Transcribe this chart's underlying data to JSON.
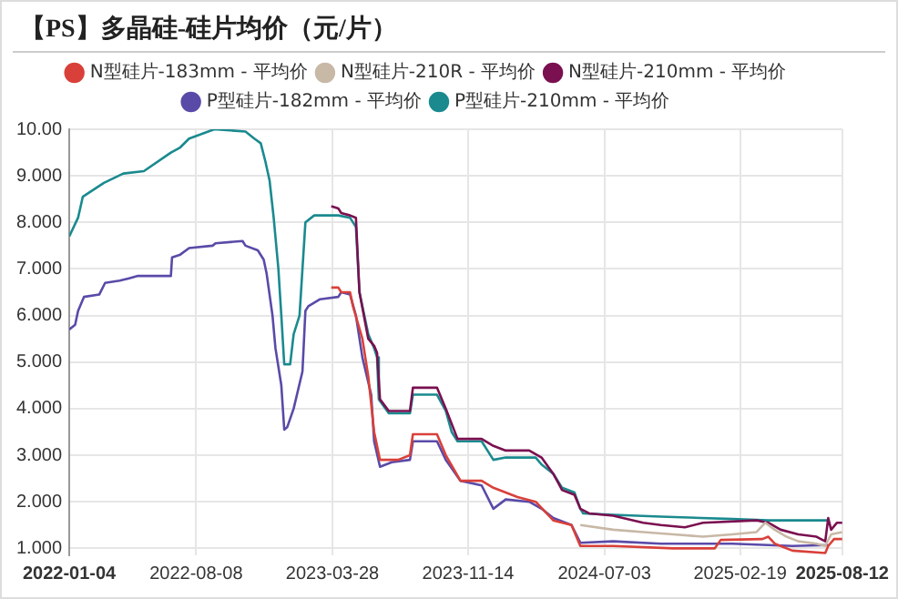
{
  "chart_data": {
    "type": "line",
    "title": "【PS】多晶硅-硅片均价（元/片）",
    "legend": "top",
    "grid": true,
    "marker": "none",
    "line_style": "solid",
    "xlim": [
      "2022-01-04",
      "2025-08-12"
    ],
    "xticks": [
      "2022-01-04",
      "2022-08-08",
      "2023-03-28",
      "2023-11-14",
      "2024-07-03",
      "2025-02-19",
      "2025-08-12"
    ],
    "ylim": [
      0.85,
      10
    ],
    "yticks": [
      {
        "value": 1,
        "label": "1.000"
      },
      {
        "value": 2,
        "label": "2.000"
      },
      {
        "value": 3,
        "label": "3.000"
      },
      {
        "value": 4,
        "label": "4.000"
      },
      {
        "value": 5,
        "label": "5.000"
      },
      {
        "value": 6,
        "label": "6.000"
      },
      {
        "value": 7,
        "label": "7.000"
      },
      {
        "value": 8,
        "label": "8.000"
      },
      {
        "value": 9,
        "label": "9.000"
      },
      {
        "value": 10,
        "label": "10.00"
      }
    ],
    "series": [
      {
        "name": "N型硅片-183mm - 平均价",
        "color": "#d9403a",
        "x": [
          "2023-03-26",
          "2023-04-07",
          "2023-04-12",
          "2023-04-27",
          "2023-05-02",
          "2023-05-18",
          "2023-05-28",
          "2023-06-07",
          "2023-06-17",
          "2023-07-18",
          "2023-08-07",
          "2023-08-12",
          "2023-09-22",
          "2023-10-07",
          "2023-11-01",
          "2023-12-07",
          "2023-12-27",
          "2024-02-06",
          "2024-03-08",
          "2024-04-07",
          "2024-05-08",
          "2024-05-23",
          "2024-07-18",
          "2024-10-28",
          "2025-01-07",
          "2025-01-17",
          "2025-03-29",
          "2025-04-08",
          "2025-04-19",
          "2025-05-19",
          "2025-07-14",
          "2025-07-19",
          "2025-07-29",
          "2025-08-12"
        ],
        "values": [
          6.6,
          6.6,
          6.5,
          6.5,
          6.2,
          5.5,
          4.7,
          3.5,
          2.9,
          2.9,
          3.0,
          3.45,
          3.45,
          3.0,
          2.45,
          2.45,
          2.3,
          2.1,
          2.0,
          1.6,
          1.5,
          1.05,
          1.05,
          1.0,
          1.0,
          1.18,
          1.2,
          1.25,
          1.1,
          0.95,
          0.9,
          1.05,
          1.2,
          1.2
        ]
      },
      {
        "name": "N型硅片-210R - 平均价",
        "color": "#c8b8a6",
        "x": [
          "2024-05-23",
          "2024-07-18",
          "2024-09-07",
          "2024-10-28",
          "2024-12-18",
          "2025-02-06",
          "2025-03-19",
          "2025-04-03",
          "2025-04-19",
          "2025-05-09",
          "2025-05-29",
          "2025-06-29",
          "2025-07-14",
          "2025-07-24",
          "2025-08-12"
        ],
        "values": [
          1.5,
          1.4,
          1.35,
          1.3,
          1.25,
          1.3,
          1.35,
          1.55,
          1.4,
          1.25,
          1.15,
          1.1,
          1.05,
          1.3,
          1.35
        ]
      },
      {
        "name": "N型硅片-210mm - 平均价",
        "color": "#7a1050",
        "x": [
          "2023-03-26",
          "2023-04-07",
          "2023-04-12",
          "2023-04-27",
          "2023-05-07",
          "2023-05-13",
          "2023-05-28",
          "2023-06-07",
          "2023-06-12",
          "2023-06-17",
          "2023-07-02",
          "2023-08-07",
          "2023-08-12",
          "2023-09-22",
          "2023-10-07",
          "2023-10-27",
          "2023-12-07",
          "2023-12-27",
          "2024-01-17",
          "2024-02-26",
          "2024-03-18",
          "2024-04-07",
          "2024-04-22",
          "2024-05-13",
          "2024-05-23",
          "2024-06-07",
          "2024-07-18",
          "2024-09-07",
          "2024-10-07",
          "2024-11-17",
          "2024-12-18",
          "2025-03-19",
          "2025-04-08",
          "2025-04-29",
          "2025-05-29",
          "2025-06-29",
          "2025-07-14",
          "2025-07-19",
          "2025-07-24",
          "2025-08-03",
          "2025-08-12"
        ],
        "values": [
          8.35,
          8.3,
          8.2,
          8.15,
          8.1,
          6.5,
          5.5,
          5.35,
          5.2,
          4.2,
          3.95,
          3.95,
          4.45,
          4.45,
          4.0,
          3.35,
          3.35,
          3.2,
          3.1,
          3.1,
          2.95,
          2.6,
          2.25,
          2.15,
          1.85,
          1.75,
          1.7,
          1.55,
          1.5,
          1.45,
          1.55,
          1.6,
          1.55,
          1.4,
          1.3,
          1.25,
          1.15,
          1.65,
          1.4,
          1.55,
          1.55
        ]
      },
      {
        "name": "P型硅片-182mm - 平均价",
        "color": "#5a4aa8",
        "x": [
          "2022-01-04",
          "2022-01-14",
          "2022-01-19",
          "2022-01-29",
          "2022-02-24",
          "2022-03-06",
          "2022-03-31",
          "2022-04-16",
          "2022-05-01",
          "2022-06-26",
          "2022-06-28",
          "2022-07-11",
          "2022-07-27",
          "2022-09-05",
          "2022-09-10",
          "2022-10-26",
          "2022-10-31",
          "2022-11-21",
          "2022-12-01",
          "2022-12-06",
          "2022-12-16",
          "2022-12-21",
          "2022-12-31",
          "2023-01-05",
          "2023-01-10",
          "2023-01-21",
          "2023-02-05",
          "2023-02-10",
          "2023-02-15",
          "2023-03-07",
          "2023-04-07",
          "2023-04-12",
          "2023-04-27",
          "2023-05-07",
          "2023-05-18",
          "2023-06-02",
          "2023-06-07",
          "2023-06-17",
          "2023-07-07",
          "2023-08-07",
          "2023-08-12",
          "2023-09-22",
          "2023-10-07",
          "2023-11-01",
          "2023-12-07",
          "2023-12-27",
          "2024-01-17",
          "2024-02-26",
          "2024-03-18",
          "2024-04-07",
          "2024-05-08",
          "2024-05-23",
          "2024-07-18",
          "2024-10-07",
          "2025-02-06",
          "2025-05-19",
          "2025-07-19"
        ],
        "values": [
          5.7,
          5.8,
          6.1,
          6.4,
          6.45,
          6.7,
          6.75,
          6.8,
          6.85,
          6.85,
          7.25,
          7.3,
          7.45,
          7.5,
          7.55,
          7.6,
          7.5,
          7.4,
          7.2,
          6.9,
          6.0,
          5.3,
          4.5,
          3.55,
          3.6,
          4.0,
          4.8,
          6.1,
          6.2,
          6.35,
          6.4,
          6.5,
          6.45,
          6.0,
          5.1,
          4.3,
          3.3,
          2.75,
          2.85,
          2.9,
          3.3,
          3.3,
          2.9,
          2.45,
          2.35,
          1.85,
          2.05,
          2.0,
          1.85,
          1.65,
          1.5,
          1.12,
          1.15,
          1.1,
          1.1,
          1.05,
          1.07
        ]
      },
      {
        "name": "P型硅片-210mm - 平均价",
        "color": "#1a8a8f",
        "x": [
          "2022-01-04",
          "2022-01-19",
          "2022-01-27",
          "2022-03-04",
          "2022-04-06",
          "2022-05-11",
          "2022-06-26",
          "2022-07-11",
          "2022-07-27",
          "2022-09-08",
          "2022-10-31",
          "2022-11-15",
          "2022-11-26",
          "2022-12-04",
          "2022-12-11",
          "2022-12-18",
          "2022-12-26",
          "2022-12-31",
          "2023-01-05",
          "2023-01-15",
          "2023-01-21",
          "2023-01-31",
          "2023-02-10",
          "2023-02-25",
          "2023-04-07",
          "2023-04-27",
          "2023-05-07",
          "2023-05-13",
          "2023-05-28",
          "2023-06-07",
          "2023-06-12",
          "2023-06-15",
          "2023-07-02",
          "2023-08-07",
          "2023-08-12",
          "2023-09-22",
          "2023-10-07",
          "2023-10-17",
          "2023-10-27",
          "2023-12-07",
          "2023-12-27",
          "2024-01-17",
          "2024-03-08",
          "2024-03-18",
          "2024-04-07",
          "2024-04-22",
          "2024-05-13",
          "2024-05-23",
          "2024-05-28",
          "2024-07-18",
          "2024-10-07",
          "2025-02-06",
          "2025-04-08",
          "2025-07-19"
        ],
        "values": [
          7.7,
          8.1,
          8.55,
          8.85,
          9.05,
          9.1,
          9.5,
          9.6,
          9.8,
          10.0,
          9.95,
          9.8,
          9.7,
          9.3,
          8.9,
          8.1,
          7.0,
          6.0,
          4.95,
          4.95,
          5.6,
          6.0,
          8.0,
          8.15,
          8.15,
          8.1,
          7.9,
          6.5,
          5.6,
          5.3,
          5.1,
          4.2,
          3.9,
          3.9,
          4.3,
          4.3,
          3.95,
          3.5,
          3.3,
          3.3,
          2.9,
          2.95,
          2.95,
          2.8,
          2.6,
          2.3,
          2.2,
          1.85,
          1.75,
          1.72,
          1.68,
          1.63,
          1.6,
          1.6
        ]
      }
    ]
  }
}
